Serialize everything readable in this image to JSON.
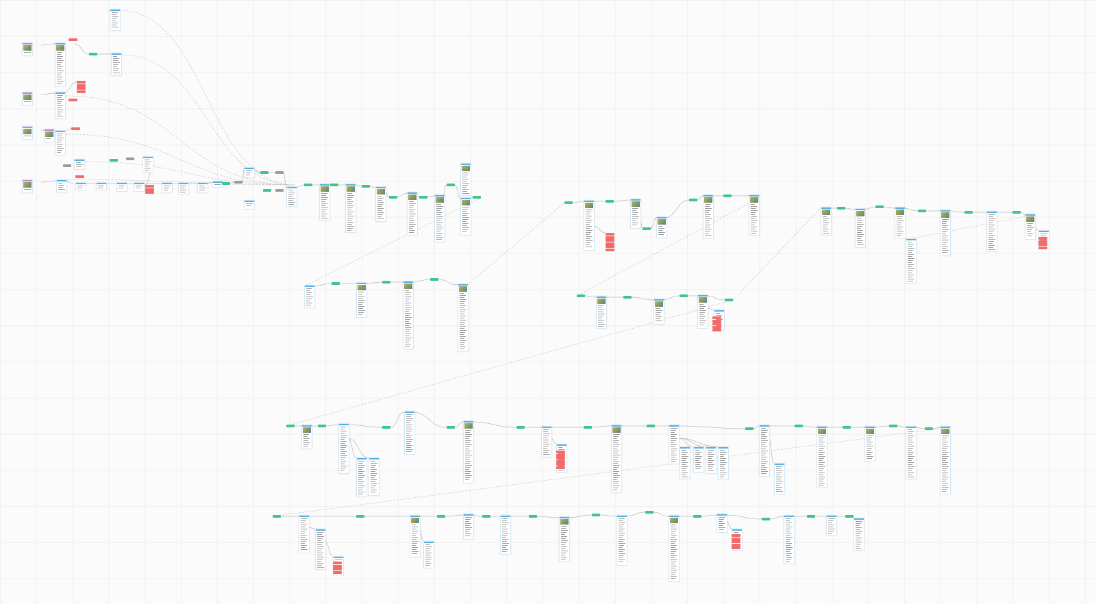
{
  "canvas": {
    "background": "#fbfbfb",
    "grid_color": "#efefef",
    "node_colors": {
      "node-card": "#4fb3e8",
      "choice-tag": "#3fc48a",
      "condition-tag": "#f26b6b",
      "entry-card": "#b58ae6",
      "note-tag": "#9a9a9a",
      "image-thumb": "#a9b98a",
      "link-line": "#b8b8b8"
    },
    "nodes": [],
    "links": []
  }
}
